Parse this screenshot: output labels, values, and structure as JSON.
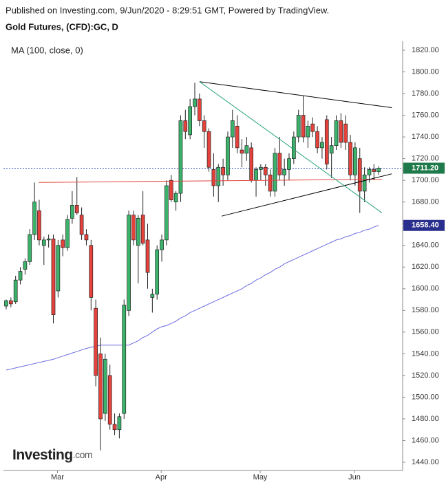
{
  "header": {
    "published": "Published on Investing.com, 9/Jun/2020 - 8:29:51 GMT, Powered by TradingView.",
    "title": "Gold Futures, (CFD):GC, D"
  },
  "logo": {
    "name": "Investing",
    "suffix": ".com"
  },
  "chart_data": {
    "type": "candlestick",
    "categories": [
      null,
      null,
      null,
      null,
      null,
      null,
      null,
      null,
      null,
      null,
      "Mar",
      null,
      null,
      null,
      null,
      null,
      null,
      null,
      null,
      null,
      null,
      null,
      null,
      null,
      null,
      null,
      null,
      null,
      null,
      null,
      null,
      null,
      "Apr",
      null,
      null,
      null,
      null,
      null,
      null,
      null,
      null,
      null,
      null,
      null,
      null,
      null,
      null,
      null,
      null,
      null,
      null,
      null,
      null,
      "May",
      null,
      null,
      null,
      null,
      null,
      null,
      null,
      null,
      null,
      null,
      null,
      null,
      null,
      null,
      null,
      null,
      null,
      null,
      null,
      "Jun",
      null,
      null,
      null,
      null,
      null,
      null
    ],
    "open": [
      1584,
      1589,
      1588,
      1608,
      1618,
      1625,
      1650,
      1672,
      1640,
      1645,
      1646,
      1598,
      1645,
      1638,
      1665,
      1677,
      1668,
      1650,
      1640,
      1582,
      1540,
      1485,
      1520,
      1475,
      1470,
      1485,
      1580,
      1668,
      1640,
      1668,
      1645,
      1592,
      1595,
      1636,
      1645,
      1700,
      1680,
      1688,
      1755,
      1742,
      1768,
      1775,
      1755,
      1745,
      1710,
      1695,
      1712,
      1705,
      1740,
      1750,
      1728,
      1725,
      1730,
      1700,
      1710,
      1712,
      1705,
      1690,
      1725,
      1705,
      1710,
      1720,
      1740,
      1760,
      1740,
      1752,
      1745,
      1730,
      1756,
      1725,
      1732,
      1755,
      1752,
      1735,
      1705,
      1720,
      1690,
      1705,
      1710,
      1708
    ],
    "high": [
      1590,
      1592,
      1612,
      1620,
      1628,
      1655,
      1698,
      1682,
      1648,
      1650,
      1650,
      1645,
      1650,
      1668,
      1690,
      1703,
      1675,
      1655,
      1645,
      1590,
      1555,
      1540,
      1530,
      1485,
      1485,
      1590,
      1672,
      1672,
      1668,
      1690,
      1660,
      1600,
      1640,
      1650,
      1700,
      1705,
      1690,
      1760,
      1765,
      1775,
      1790,
      1780,
      1760,
      1748,
      1725,
      1715,
      1720,
      1745,
      1765,
      1760,
      1738,
      1740,
      1735,
      1712,
      1715,
      1715,
      1710,
      1730,
      1740,
      1720,
      1725,
      1745,
      1765,
      1778,
      1755,
      1758,
      1750,
      1740,
      1760,
      1740,
      1760,
      1762,
      1760,
      1742,
      1735,
      1730,
      1712,
      1712,
      1715,
      1713
    ],
    "low": [
      1581,
      1583,
      1586,
      1604,
      1613,
      1622,
      1645,
      1640,
      1622,
      1638,
      1568,
      1592,
      1630,
      1635,
      1660,
      1668,
      1645,
      1640,
      1580,
      1510,
      1451,
      1478,
      1470,
      1465,
      1462,
      1480,
      1575,
      1640,
      1605,
      1640,
      1600,
      1578,
      1590,
      1625,
      1640,
      1680,
      1672,
      1680,
      1738,
      1738,
      1760,
      1750,
      1730,
      1708,
      1685,
      1680,
      1695,
      1700,
      1730,
      1725,
      1712,
      1718,
      1698,
      1685,
      1700,
      1695,
      1685,
      1685,
      1700,
      1695,
      1700,
      1715,
      1735,
      1735,
      1730,
      1740,
      1725,
      1720,
      1710,
      1702,
      1728,
      1730,
      1728,
      1700,
      1695,
      1670,
      1680,
      1698,
      1700,
      1705
    ],
    "close": [
      1589,
      1586,
      1608,
      1616,
      1625,
      1650,
      1680,
      1645,
      1645,
      1646,
      1576,
      1640,
      1638,
      1664,
      1677,
      1670,
      1650,
      1645,
      1592,
      1520,
      1480,
      1535,
      1475,
      1470,
      1482,
      1585,
      1668,
      1645,
      1665,
      1642,
      1615,
      1595,
      1636,
      1645,
      1695,
      1682,
      1688,
      1755,
      1745,
      1768,
      1775,
      1755,
      1745,
      1712,
      1695,
      1712,
      1705,
      1740,
      1755,
      1730,
      1725,
      1732,
      1700,
      1710,
      1712,
      1705,
      1690,
      1725,
      1705,
      1710,
      1720,
      1740,
      1760,
      1740,
      1750,
      1745,
      1730,
      1735,
      1715,
      1732,
      1755,
      1735,
      1735,
      1705,
      1730,
      1690,
      1705,
      1710,
      1708,
      1711.2
    ],
    "up_color": "#3bb36b",
    "down_color": "#e5423c",
    "overlays": [
      {
        "name": "MA (100, close, 0)",
        "color": "#6b6be0",
        "values": [
          1525,
          1526,
          1527,
          1528,
          1529,
          1530,
          1531,
          1532,
          1533,
          1534,
          1535,
          1536.4,
          1537.9,
          1539.3,
          1540.7,
          1542.1,
          1543.6,
          1545,
          1546,
          1547,
          1548,
          1548,
          1548,
          1548,
          1548,
          1548,
          1548,
          1550,
          1552,
          1555,
          1557,
          1560,
          1563,
          1565,
          1566,
          1568,
          1570,
          1573,
          1575,
          1578,
          1580,
          1582,
          1584,
          1586,
          1588,
          1590,
          1592,
          1594,
          1596,
          1598,
          1600,
          1603,
          1605,
          1608,
          1610,
          1613,
          1615,
          1618,
          1620,
          1623,
          1625,
          1627,
          1629,
          1631,
          1633,
          1635,
          1637,
          1639,
          1641,
          1643,
          1645,
          1646,
          1648,
          1649,
          1651,
          1652,
          1654,
          1655,
          1657,
          1658.4
        ]
      }
    ],
    "price_labels": [
      {
        "value": 1711.2,
        "label": "1711.20",
        "color": "#1e7a4a"
      },
      {
        "value": 1658.4,
        "label": "1658.40",
        "color": "#2a2e8c"
      }
    ],
    "drawings": [
      {
        "color": "#e0443c",
        "points": [
          [
            6.9,
            1698
          ],
          [
            79.7,
            1701
          ]
        ]
      },
      {
        "color": "#000000",
        "points": [
          [
            41,
            1791
          ],
          [
            81.8,
            1767
          ]
        ]
      },
      {
        "color": "#000000",
        "points": [
          [
            45.7,
            1667
          ],
          [
            81.8,
            1706
          ]
        ]
      },
      {
        "color": "#2aa37a",
        "points": [
          [
            41,
            1791
          ],
          [
            79.7,
            1670
          ]
        ]
      }
    ],
    "ylim": [
      1440,
      1820
    ],
    "yticks": [
      {
        "value": 1440,
        "label": "1440.00"
      },
      {
        "value": 1460,
        "label": "1460.00"
      },
      {
        "value": 1480,
        "label": "1480.00"
      },
      {
        "value": 1500,
        "label": "1500.00"
      },
      {
        "value": 1520,
        "label": "1520.00"
      },
      {
        "value": 1540,
        "label": "1540.00"
      },
      {
        "value": 1560,
        "label": "1560.00"
      },
      {
        "value": 1580,
        "label": "1580.00"
      },
      {
        "value": 1600,
        "label": "1600.00"
      },
      {
        "value": 1620,
        "label": "1620.00"
      },
      {
        "value": 1640,
        "label": "1640.00"
      },
      {
        "value": 1660,
        "label": "1660.00"
      },
      {
        "value": 1680,
        "label": "1680.00"
      },
      {
        "value": 1700,
        "label": "1700.00"
      },
      {
        "value": 1720,
        "label": "1720.00"
      },
      {
        "value": 1740,
        "label": "1740.00"
      },
      {
        "value": 1760,
        "label": "1760.00"
      },
      {
        "value": 1780,
        "label": "1780.00"
      },
      {
        "value": 1800,
        "label": "1800.00"
      },
      {
        "value": 1820,
        "label": "1820.00"
      }
    ]
  }
}
